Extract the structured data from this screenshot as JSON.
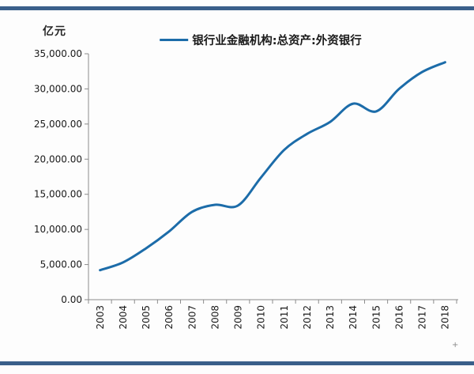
{
  "chart_meta": {
    "unit_label": "亿元",
    "legend_label": "银行业金融机构:总资产:外资银行",
    "corner_mark": "+"
  },
  "colors": {
    "accent_bar": "#3a5f8a",
    "line": "#1c6ca9",
    "axis": "#8c8c8c",
    "text": "#1a1a1a"
  },
  "chart_data": {
    "type": "line",
    "title": "银行业金融机构:总资产:外资银行",
    "xlabel": "",
    "ylabel": "亿元",
    "categories": [
      "2003",
      "2004",
      "2005",
      "2006",
      "2007",
      "2008",
      "2009",
      "2010",
      "2011",
      "2012",
      "2013",
      "2014",
      "2015",
      "2016",
      "2017",
      "2018"
    ],
    "values": [
      4200,
      5300,
      7300,
      9700,
      12500,
      13500,
      13400,
      17400,
      21300,
      23600,
      25300,
      27900,
      26800,
      30000,
      32400,
      33800
    ],
    "ylim": [
      0,
      35000
    ],
    "y_ticks": [
      {
        "value": 35000,
        "label": "35,000.00"
      },
      {
        "value": 30000,
        "label": "30,000.00"
      },
      {
        "value": 25000,
        "label": "25,000.00"
      },
      {
        "value": 20000,
        "label": "20,000.00"
      },
      {
        "value": 15000,
        "label": "15,000.00"
      },
      {
        "value": 10000,
        "label": "10,000.00"
      },
      {
        "value": 5000,
        "label": "5,000.00"
      },
      {
        "value": 0,
        "label": "0.00"
      }
    ],
    "grid": false,
    "smooth": true,
    "legend_position": "top",
    "line_color": "#1c6ca9"
  }
}
